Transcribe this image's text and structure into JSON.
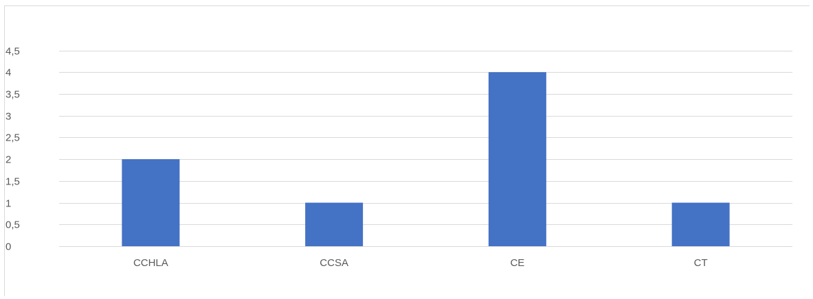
{
  "chart_data": {
    "type": "bar",
    "categories": [
      "CCHLA",
      "CCSA",
      "CE",
      "CT"
    ],
    "series": [
      {
        "values": [
          2,
          1,
          4,
          1
        ]
      }
    ],
    "yticks": [
      "0",
      "0,5",
      "1",
      "1,5",
      "2",
      "2,5",
      "3",
      "3,5",
      "4",
      "4,5"
    ],
    "ylim": [
      0,
      4.5
    ],
    "grid": true,
    "legend": "none",
    "bar_color": "#4472c4",
    "grid_color": "#d9d9d9",
    "label_color": "#595959"
  }
}
